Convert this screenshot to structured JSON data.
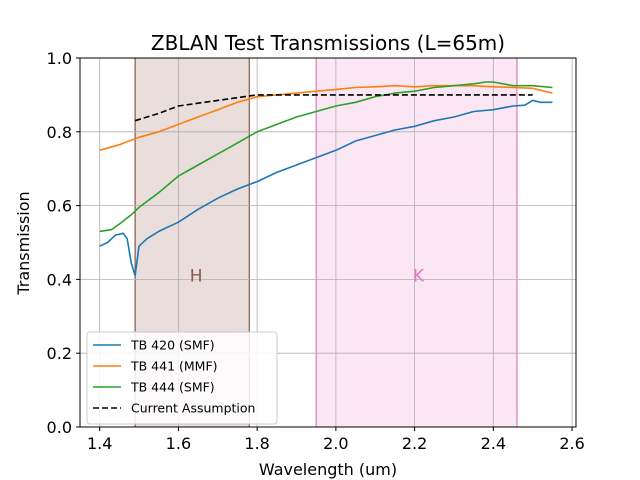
{
  "chart_data": {
    "type": "line",
    "title": "ZBLAN Test Transmissions (L=65m)",
    "xlabel": "Wavelength (um)",
    "ylabel": "Transmission",
    "xlim": [
      1.35,
      2.61
    ],
    "ylim": [
      0.0,
      1.0
    ],
    "xticks": [
      1.4,
      1.6,
      1.8,
      2.0,
      2.2,
      2.4,
      2.6
    ],
    "xtick_labels": [
      "1.4",
      "1.6",
      "1.8",
      "2.0",
      "2.2",
      "2.4",
      "2.6"
    ],
    "yticks": [
      0.0,
      0.2,
      0.4,
      0.6,
      0.8,
      1.0
    ],
    "ytick_labels": [
      "0.0",
      "0.2",
      "0.4",
      "0.6",
      "0.8",
      "1.0"
    ],
    "grid": true,
    "legend_position": "lower-left",
    "bands": [
      {
        "label": "H",
        "x_start": 1.49,
        "x_end": 1.78,
        "fill": "#e9dedb",
        "edge": "#8c564b",
        "text_color": "#8c564b",
        "label_x": 1.645,
        "label_y": 0.41
      },
      {
        "label": "K",
        "x_start": 1.95,
        "x_end": 2.46,
        "fill": "#fbe6f3",
        "edge": "#e377c2",
        "text_color": "#e377c2",
        "label_x": 2.21,
        "label_y": 0.41
      }
    ],
    "series": [
      {
        "name": "TB 420 (SMF)",
        "color": "#1f77b4",
        "dash": "solid",
        "x": [
          1.4,
          1.42,
          1.44,
          1.46,
          1.47,
          1.48,
          1.49,
          1.5,
          1.52,
          1.55,
          1.6,
          1.65,
          1.7,
          1.75,
          1.8,
          1.85,
          1.9,
          1.95,
          2.0,
          2.05,
          2.1,
          2.15,
          2.2,
          2.25,
          2.3,
          2.35,
          2.4,
          2.45,
          2.48,
          2.5,
          2.52,
          2.55
        ],
        "y": [
          0.49,
          0.5,
          0.52,
          0.525,
          0.51,
          0.445,
          0.41,
          0.49,
          0.51,
          0.53,
          0.555,
          0.59,
          0.62,
          0.645,
          0.665,
          0.69,
          0.71,
          0.73,
          0.75,
          0.775,
          0.79,
          0.805,
          0.815,
          0.83,
          0.84,
          0.855,
          0.86,
          0.87,
          0.872,
          0.885,
          0.88,
          0.88
        ]
      },
      {
        "name": "TB 441 (MMF)",
        "color": "#ff7f0e",
        "dash": "solid",
        "x": [
          1.4,
          1.45,
          1.5,
          1.55,
          1.6,
          1.65,
          1.7,
          1.75,
          1.8,
          1.85,
          1.9,
          1.95,
          2.0,
          2.05,
          2.1,
          2.15,
          2.2,
          2.25,
          2.3,
          2.35,
          2.4,
          2.45,
          2.5,
          2.55
        ],
        "y": [
          0.75,
          0.765,
          0.785,
          0.8,
          0.82,
          0.84,
          0.86,
          0.88,
          0.895,
          0.9,
          0.905,
          0.91,
          0.915,
          0.92,
          0.922,
          0.925,
          0.922,
          0.925,
          0.925,
          0.925,
          0.922,
          0.92,
          0.918,
          0.905
        ]
      },
      {
        "name": "TB 444 (SMF)",
        "color": "#2ca02c",
        "dash": "solid",
        "x": [
          1.4,
          1.43,
          1.45,
          1.48,
          1.5,
          1.55,
          1.6,
          1.65,
          1.7,
          1.75,
          1.8,
          1.85,
          1.9,
          1.95,
          2.0,
          2.05,
          2.1,
          2.15,
          2.2,
          2.25,
          2.3,
          2.35,
          2.38,
          2.4,
          2.45,
          2.5,
          2.55
        ],
        "y": [
          0.53,
          0.535,
          0.55,
          0.575,
          0.595,
          0.635,
          0.68,
          0.71,
          0.74,
          0.77,
          0.8,
          0.82,
          0.84,
          0.855,
          0.87,
          0.88,
          0.895,
          0.905,
          0.91,
          0.92,
          0.925,
          0.93,
          0.935,
          0.935,
          0.925,
          0.925,
          0.92
        ]
      },
      {
        "name": "Current Assumption",
        "color": "#000000",
        "dash": "dashed",
        "x": [
          1.49,
          1.55,
          1.6,
          1.7,
          1.8,
          1.9,
          2.0,
          2.1,
          2.2,
          2.3,
          2.4,
          2.5
        ],
        "y": [
          0.83,
          0.85,
          0.87,
          0.885,
          0.9,
          0.9,
          0.9,
          0.9,
          0.9,
          0.9,
          0.9,
          0.9
        ]
      }
    ]
  }
}
